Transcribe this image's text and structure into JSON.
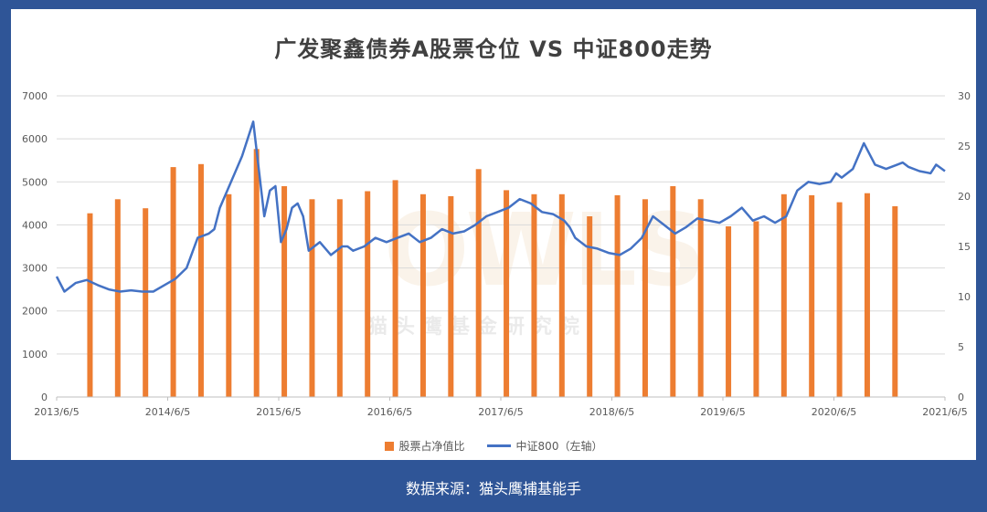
{
  "title": "广发聚鑫债券A股票仓位 VS 中证800走势",
  "footer": "数据来源：猫头鹰捕基能手",
  "watermark": {
    "logo_text": "OWLS",
    "text": "猫头鹰基金研究院"
  },
  "colors": {
    "bars": "#ed7d31",
    "line": "#4472c4",
    "frame": "#2f5597"
  },
  "chart_data": {
    "type": "bar+line",
    "x_ticks": [
      "2013/6/5",
      "2014/6/5",
      "2015/6/5",
      "2016/6/5",
      "2017/6/5",
      "2018/6/5",
      "2019/6/5",
      "2020/6/5",
      "2021/6/5"
    ],
    "x_range": [
      2013.43,
      2021.43
    ],
    "left_axis": {
      "ticks": [
        0,
        1000,
        2000,
        3000,
        4000,
        5000,
        6000,
        7000
      ],
      "range": [
        0,
        7000
      ]
    },
    "right_axis": {
      "ticks": [
        0,
        5,
        10,
        15,
        20,
        25,
        30
      ],
      "range": [
        0,
        30
      ]
    },
    "legend": {
      "bars": "股票占净值比",
      "line": "中证800（左轴）"
    },
    "bars": {
      "name": "股票占净值比",
      "x": [
        2013.73,
        2013.98,
        2014.23,
        2014.48,
        2014.73,
        2014.98,
        2015.23,
        2015.48,
        2015.73,
        2015.98,
        2016.23,
        2016.48,
        2016.73,
        2016.98,
        2017.23,
        2017.48,
        2017.73,
        2017.98,
        2018.23,
        2018.48,
        2018.73,
        2018.98,
        2019.23,
        2019.48,
        2019.73,
        2019.98,
        2020.23,
        2020.48,
        2020.73,
        2020.98
      ],
      "values": [
        18.3,
        19.7,
        18.8,
        22.9,
        23.2,
        20.2,
        24.7,
        21.0,
        19.7,
        19.7,
        20.5,
        21.6,
        20.2,
        20.0,
        22.7,
        20.6,
        20.2,
        20.2,
        18.0,
        20.1,
        19.7,
        21.0,
        19.7,
        17.0,
        17.5,
        20.2,
        20.1,
        19.4,
        20.3,
        19.0
      ]
    },
    "line": {
      "name": "中证800",
      "x": [
        2013.43,
        2013.5,
        2013.6,
        2013.7,
        2013.8,
        2013.9,
        2014.0,
        2014.1,
        2014.2,
        2014.3,
        2014.4,
        2014.5,
        2014.6,
        2014.7,
        2014.8,
        2014.85,
        2014.9,
        2015.0,
        2015.1,
        2015.2,
        2015.3,
        2015.35,
        2015.4,
        2015.45,
        2015.5,
        2015.55,
        2015.6,
        2015.65,
        2015.7,
        2015.75,
        2015.8,
        2015.9,
        2016.0,
        2016.05,
        2016.1,
        2016.2,
        2016.3,
        2016.4,
        2016.5,
        2016.6,
        2016.7,
        2016.8,
        2016.9,
        2017.0,
        2017.1,
        2017.2,
        2017.3,
        2017.4,
        2017.5,
        2017.6,
        2017.7,
        2017.8,
        2017.9,
        2018.0,
        2018.05,
        2018.1,
        2018.2,
        2018.3,
        2018.4,
        2018.5,
        2018.6,
        2018.7,
        2018.8,
        2018.9,
        2019.0,
        2019.1,
        2019.2,
        2019.3,
        2019.4,
        2019.5,
        2019.6,
        2019.7,
        2019.8,
        2019.9,
        2020.0,
        2020.1,
        2020.2,
        2020.3,
        2020.4,
        2020.45,
        2020.5,
        2020.6,
        2020.7,
        2020.8,
        2020.9,
        2021.0,
        2021.05,
        2021.1,
        2021.2,
        2021.3,
        2021.35,
        2021.43
      ],
      "values": [
        2800,
        2450,
        2650,
        2720,
        2600,
        2500,
        2450,
        2480,
        2450,
        2450,
        2600,
        2750,
        3000,
        3700,
        3800,
        3900,
        4400,
        5000,
        5600,
        6400,
        4200,
        4800,
        4900,
        3600,
        3900,
        4400,
        4500,
        4200,
        3400,
        3500,
        3600,
        3300,
        3500,
        3500,
        3400,
        3500,
        3700,
        3600,
        3700,
        3800,
        3600,
        3700,
        3900,
        3800,
        3850,
        4000,
        4200,
        4300,
        4400,
        4600,
        4500,
        4300,
        4250,
        4100,
        3950,
        3700,
        3500,
        3450,
        3350,
        3300,
        3450,
        3700,
        4200,
        4000,
        3800,
        3950,
        4150,
        4100,
        4050,
        4200,
        4400,
        4100,
        4200,
        4050,
        4200,
        4800,
        5000,
        4950,
        5000,
        5200,
        5100,
        5300,
        5900,
        5400,
        5300,
        5400,
        5450,
        5350,
        5250,
        5200,
        5400,
        5250
      ]
    }
  }
}
